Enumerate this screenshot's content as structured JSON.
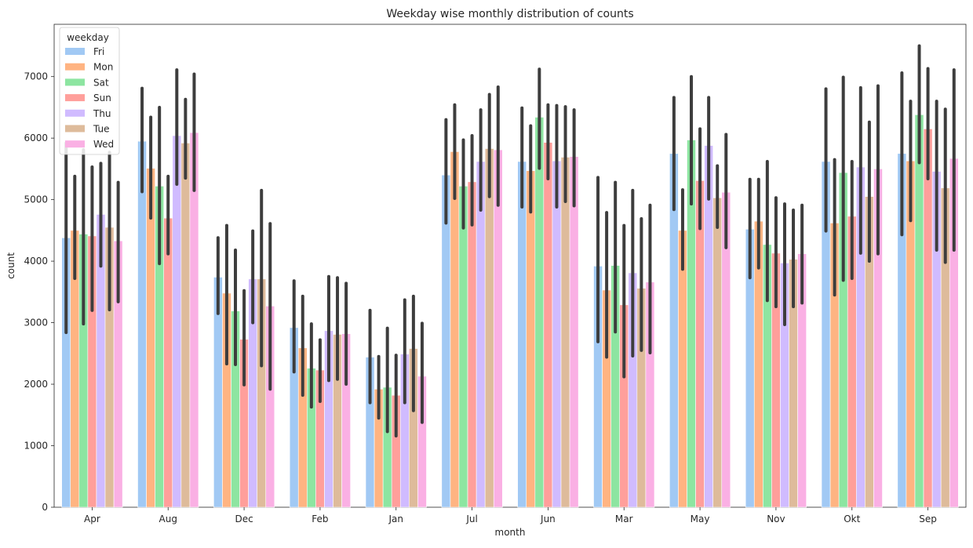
{
  "chart_data": {
    "type": "bar",
    "title": "Weekday wise monthly distribution of counts",
    "xlabel": "month",
    "ylabel": "count",
    "ylim": [
      0,
      7850
    ],
    "yticks": [
      0,
      1000,
      2000,
      3000,
      4000,
      5000,
      6000,
      7000
    ],
    "grid": false,
    "legend": {
      "title": "weekday",
      "placement": "top-left"
    },
    "categories": [
      "Apr",
      "Aug",
      "Dec",
      "Feb",
      "Jan",
      "Jul",
      "Jun",
      "Mar",
      "May",
      "Nov",
      "Okt",
      "Sep"
    ],
    "series": [
      {
        "name": "Fri",
        "color": "#a1c9f4",
        "values": [
          4380,
          5950,
          3740,
          2920,
          2440,
          5400,
          5620,
          3920,
          5750,
          4520,
          5620,
          5750
        ],
        "ci": [
          [
            2840,
            5920
          ],
          [
            5130,
            6810
          ],
          [
            3150,
            4380
          ],
          [
            2200,
            3680
          ],
          [
            1700,
            3200
          ],
          [
            4620,
            6300
          ],
          [
            4880,
            6490
          ],
          [
            2690,
            5360
          ],
          [
            4840,
            6660
          ],
          [
            3730,
            5330
          ],
          [
            4490,
            6800
          ],
          [
            4430,
            7060
          ]
        ]
      },
      {
        "name": "Mon",
        "color": "#ffb482",
        "values": [
          4500,
          5510,
          3480,
          2590,
          1920,
          5780,
          5470,
          3530,
          4500,
          4650,
          4620,
          5630
        ],
        "ci": [
          [
            3720,
            5380
          ],
          [
            4700,
            6340
          ],
          [
            2330,
            4580
          ],
          [
            1820,
            3430
          ],
          [
            1450,
            2450
          ],
          [
            5020,
            6540
          ],
          [
            4800,
            6200
          ],
          [
            2440,
            4790
          ],
          [
            3870,
            5160
          ],
          [
            3890,
            5330
          ],
          [
            3450,
            5650
          ],
          [
            4660,
            6600
          ]
        ]
      },
      {
        "name": "Sat",
        "color": "#8de5a1",
        "values": [
          4440,
          5220,
          3190,
          2260,
          1950,
          5220,
          6340,
          3930,
          5970,
          4270,
          5440,
          6380
        ],
        "ci": [
          [
            2980,
            5810
          ],
          [
            3960,
            6500
          ],
          [
            2320,
            4180
          ],
          [
            1630,
            2980
          ],
          [
            1230,
            2910
          ],
          [
            4540,
            5970
          ],
          [
            5510,
            7120
          ],
          [
            2850,
            5280
          ],
          [
            4930,
            7000
          ],
          [
            3360,
            5620
          ],
          [
            3690,
            6990
          ],
          [
            5600,
            7500
          ]
        ]
      },
      {
        "name": "Sun",
        "color": "#ff9f9b",
        "values": [
          4410,
          4700,
          2730,
          2230,
          1820,
          5290,
          5930,
          3290,
          5310,
          4130,
          4730,
          6150
        ],
        "ci": [
          [
            3200,
            5530
          ],
          [
            4120,
            5380
          ],
          [
            1990,
            3520
          ],
          [
            1720,
            2720
          ],
          [
            1160,
            2470
          ],
          [
            4590,
            6040
          ],
          [
            5340,
            6540
          ],
          [
            2120,
            4580
          ],
          [
            4530,
            6150
          ],
          [
            3260,
            5030
          ],
          [
            3720,
            5620
          ],
          [
            5340,
            7130
          ]
        ]
      },
      {
        "name": "Thu",
        "color": "#d0bbff",
        "values": [
          4760,
          6040,
          3710,
          2870,
          2490,
          5620,
          5630,
          3810,
          5880,
          3970,
          5530,
          5460
        ],
        "ci": [
          [
            3920,
            5590
          ],
          [
            5250,
            7110
          ],
          [
            3000,
            4490
          ],
          [
            2060,
            3750
          ],
          [
            1700,
            3370
          ],
          [
            4830,
            6460
          ],
          [
            4880,
            6530
          ],
          [
            2460,
            5150
          ],
          [
            5010,
            6660
          ],
          [
            2970,
            4930
          ],
          [
            4130,
            6820
          ],
          [
            4180,
            6600
          ]
        ]
      },
      {
        "name": "Tue",
        "color": "#debb9b",
        "values": [
          4550,
          5920,
          3710,
          2810,
          2580,
          5830,
          5690,
          3560,
          5030,
          4030,
          5050,
          5190
        ],
        "ci": [
          [
            3210,
            5770
          ],
          [
            5350,
            6630
          ],
          [
            2300,
            5150
          ],
          [
            2080,
            3730
          ],
          [
            1570,
            3430
          ],
          [
            5050,
            6710
          ],
          [
            4970,
            6510
          ],
          [
            2550,
            4690
          ],
          [
            4550,
            5550
          ],
          [
            3260,
            4830
          ],
          [
            4000,
            6260
          ],
          [
            3980,
            6470
          ]
        ]
      },
      {
        "name": "Wed",
        "color": "#fab0e4",
        "values": [
          4330,
          6090,
          3270,
          2820,
          2130,
          5810,
          5700,
          3660,
          5120,
          4120,
          5500,
          5670
        ],
        "ci": [
          [
            3340,
            5280
          ],
          [
            5150,
            7040
          ],
          [
            1920,
            4610
          ],
          [
            2000,
            3640
          ],
          [
            1380,
            2990
          ],
          [
            4910,
            6830
          ],
          [
            4900,
            6460
          ],
          [
            2510,
            4910
          ],
          [
            4220,
            6060
          ],
          [
            3320,
            4910
          ],
          [
            4120,
            6850
          ],
          [
            4180,
            7110
          ]
        ]
      }
    ]
  }
}
